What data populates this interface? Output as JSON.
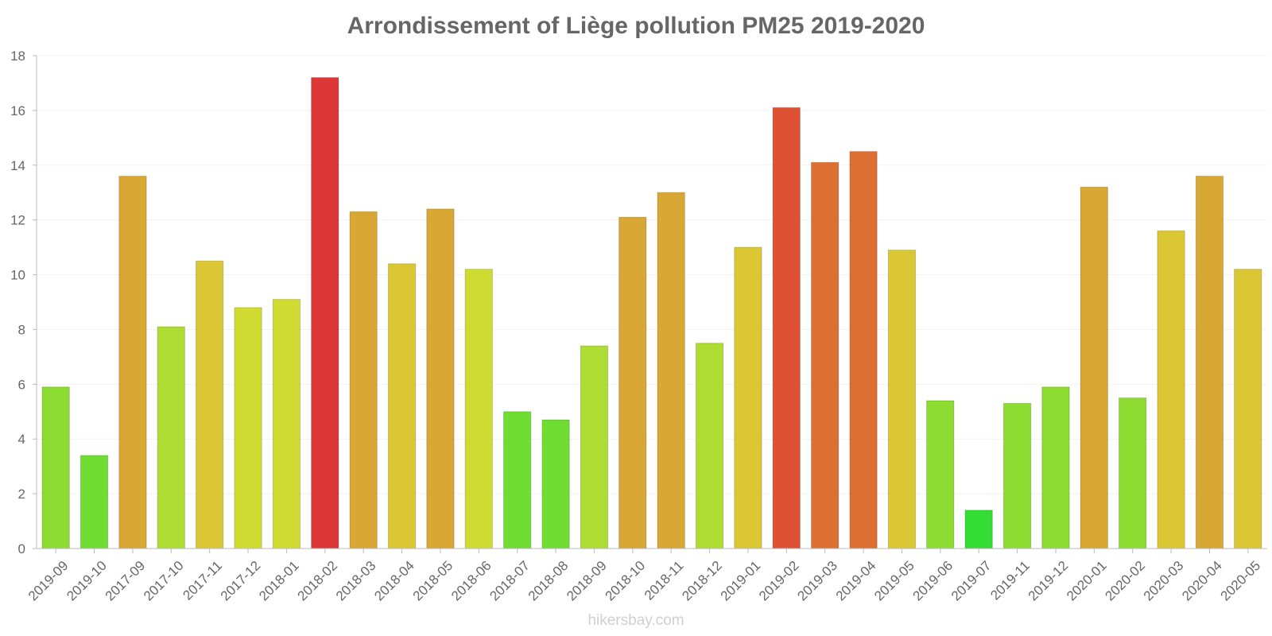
{
  "chart_data": {
    "type": "bar",
    "title": "Arrondissement of Liège pollution PM25 2019-2020",
    "xlabel": "",
    "ylabel": "",
    "ylim": [
      0,
      18
    ],
    "yticks": [
      0,
      2,
      4,
      6,
      8,
      10,
      12,
      14,
      16,
      18
    ],
    "grid": true,
    "categories": [
      "2019-09",
      "2019-10",
      "2017-09",
      "2017-10",
      "2017-11",
      "2017-12",
      "2018-01",
      "2018-02",
      "2018-03",
      "2018-04",
      "2018-05",
      "2018-06",
      "2018-07",
      "2018-08",
      "2018-09",
      "2018-10",
      "2018-11",
      "2018-12",
      "2019-01",
      "2019-02",
      "2019-03",
      "2019-04",
      "2019-05",
      "2019-06",
      "2019-07",
      "2019-11",
      "2019-12",
      "2020-01",
      "2020-02",
      "2020-03",
      "2020-04",
      "2020-05"
    ],
    "values": [
      5.9,
      3.4,
      13.6,
      8.1,
      10.5,
      8.8,
      9.1,
      17.2,
      12.3,
      10.4,
      12.4,
      10.2,
      5.0,
      4.7,
      7.4,
      12.1,
      13.0,
      7.5,
      11.0,
      16.1,
      14.1,
      14.5,
      10.9,
      5.4,
      1.4,
      5.3,
      5.9,
      13.2,
      5.5,
      11.6,
      13.6,
      10.2
    ],
    "colors": [
      "#8cdc32",
      "#70dd32",
      "#d9a733",
      "#aedc32",
      "#dbc734",
      "#d1dc32",
      "#d1dc32",
      "#dc3636",
      "#d9a733",
      "#dbc734",
      "#d9a733",
      "#cedc32",
      "#70dd32",
      "#70dd32",
      "#aedc32",
      "#d9a733",
      "#d9a733",
      "#aedc32",
      "#dbc734",
      "#de5132",
      "#dd6f32",
      "#dd6f32",
      "#dbc734",
      "#8cdc32",
      "#33dd33",
      "#8cdc32",
      "#8cdc32",
      "#d9a733",
      "#8cdc32",
      "#dbc734",
      "#d9a733",
      "#dbc734"
    ]
  },
  "watermark": "hikersbay.com"
}
